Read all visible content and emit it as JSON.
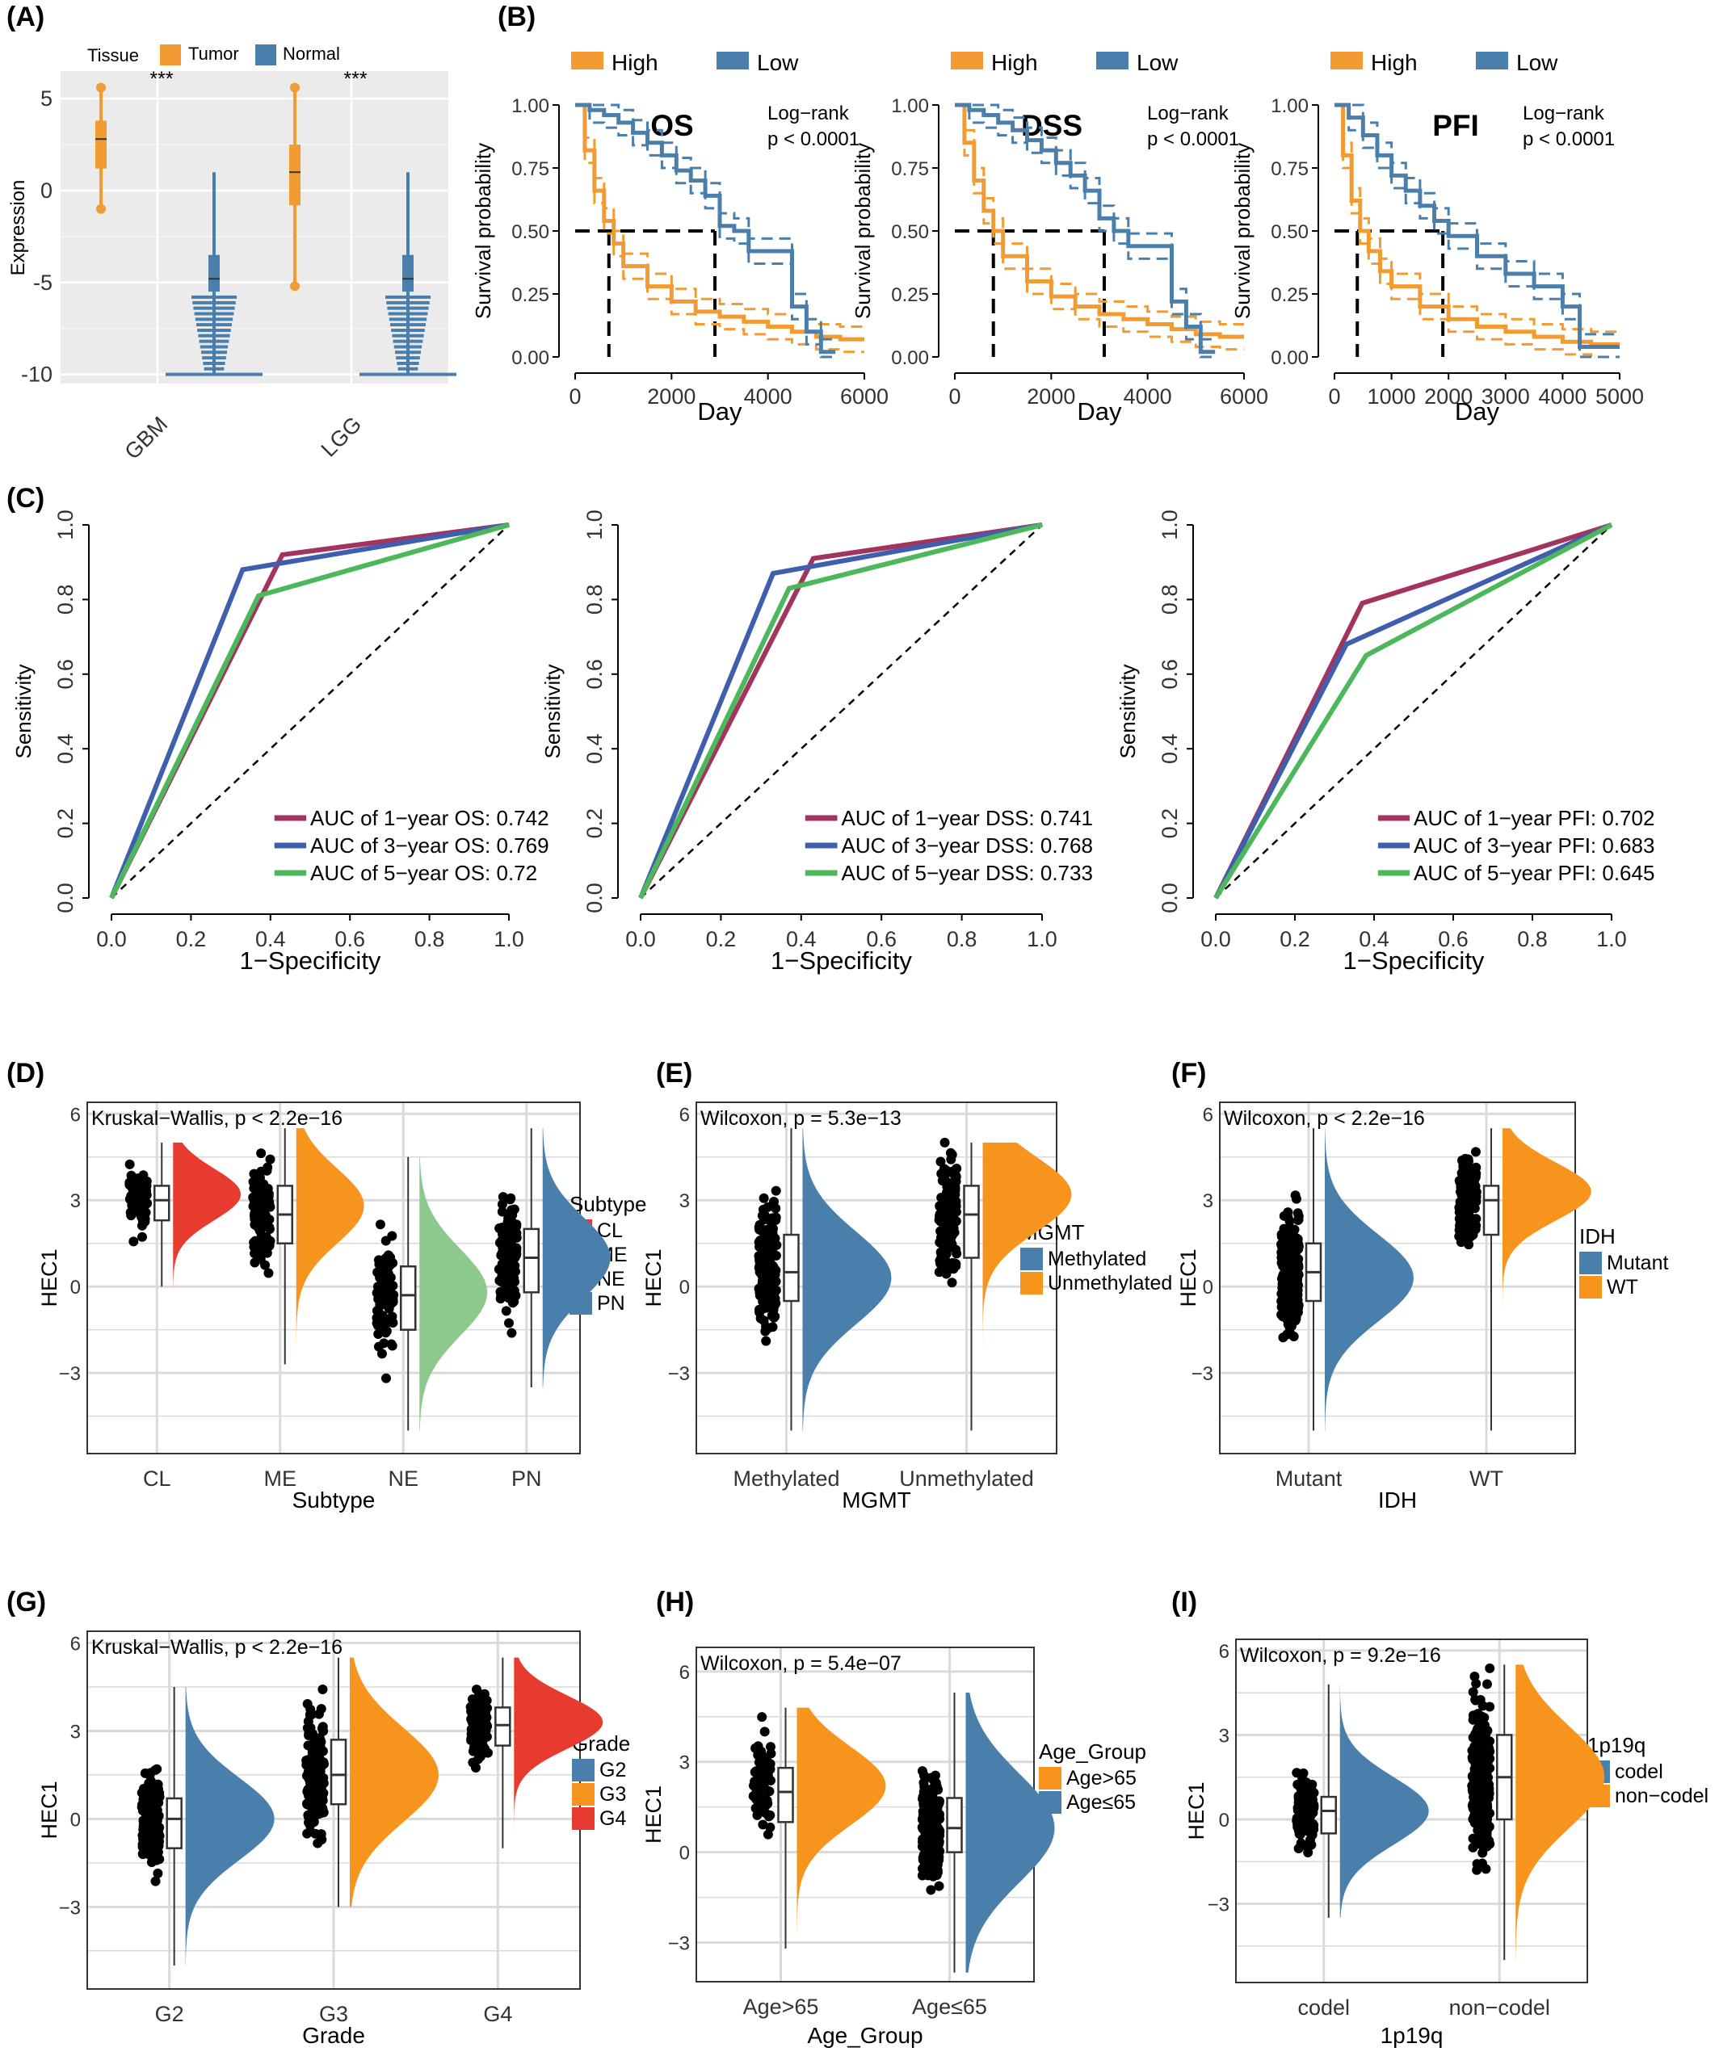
{
  "panel_labels": [
    "(A)",
    "(B)",
    "(C)",
    "(D)",
    "(E)",
    "(F)",
    "(G)",
    "(H)",
    "(I)"
  ],
  "colors": {
    "tumor": "#F29B30",
    "normal": "#4A7EAB",
    "high": "#F29B30",
    "low": "#4A7EAB",
    "roc1": "#A3345E",
    "roc3": "#3F5FAE",
    "roc5": "#4DB85B",
    "CL": "#E63B2E",
    "ME": "#F7941D",
    "NE": "#8DC98C",
    "PN": "#4A7EAB",
    "methylated": "#4A7EAB",
    "unmethylated": "#F7941D",
    "mutant": "#4A7EAB",
    "wt": "#F7941D",
    "G2": "#4A7EAB",
    "G3": "#F7941D",
    "G4": "#E63B2E",
    "age_gt65": "#F7941D",
    "age_le65": "#4A7EAB",
    "codel": "#4A7EAB",
    "noncodel": "#F7941D"
  },
  "chart_data": [
    {
      "id": "A",
      "type": "box",
      "legend_title": "Tissue",
      "legend": [
        "Tumor",
        "Normal"
      ],
      "categories": [
        "GBM",
        "LGG"
      ],
      "ylabel": "Expression",
      "ylim": [
        -10.5,
        6.5
      ],
      "yticks": [
        5,
        0,
        -5,
        -10
      ],
      "significance": [
        "***",
        "***"
      ],
      "series": [
        {
          "name": "Tumor",
          "GBM": {
            "min": -1.0,
            "q1": 1.2,
            "median": 2.8,
            "q3": 3.8,
            "max": 5.6
          },
          "LGG": {
            "min": -5.2,
            "q1": -0.8,
            "median": 1.0,
            "q3": 2.5,
            "max": 5.6
          }
        },
        {
          "name": "Normal",
          "GBM": {
            "min": -10,
            "q1": -5.5,
            "median": -4.8,
            "q3": -3.5,
            "max": 1.0
          },
          "LGG": {
            "min": -10,
            "q1": -5.5,
            "median": -4.8,
            "q3": -3.5,
            "max": 1.0
          }
        }
      ]
    },
    {
      "id": "B",
      "type": "line",
      "subplots": [
        {
          "title": "OS",
          "logrank": "Log−rank",
          "p": "p < 0.0001",
          "xlim": [
            0,
            6000
          ],
          "xticks": [
            0,
            2000,
            4000,
            6000
          ],
          "median_high": 700,
          "median_low": 2900,
          "high": {
            "x": [
              0,
              200,
              400,
              600,
              800,
              1000,
              1500,
              2000,
              2500,
              3000,
              3500,
              4000,
              4500,
              5000,
              5500,
              6000
            ],
            "y": [
              1.0,
              0.82,
              0.66,
              0.54,
              0.45,
              0.36,
              0.28,
              0.22,
              0.18,
              0.16,
              0.14,
              0.12,
              0.1,
              0.08,
              0.07,
              0.07
            ]
          },
          "low": {
            "x": [
              0,
              300,
              600,
              900,
              1200,
              1500,
              1800,
              2100,
              2400,
              2700,
              3000,
              3300,
              3600,
              3900,
              4200,
              4500,
              4800,
              5100,
              5400
            ],
            "y": [
              1.0,
              0.98,
              0.96,
              0.93,
              0.89,
              0.85,
              0.8,
              0.74,
              0.7,
              0.64,
              0.52,
              0.5,
              0.42,
              0.42,
              0.42,
              0.2,
              0.1,
              0.02,
              0.02
            ]
          }
        },
        {
          "title": "DSS",
          "logrank": "Log−rank",
          "p": "p < 0.0001",
          "xlim": [
            0,
            6000
          ],
          "xticks": [
            0,
            2000,
            4000,
            6000
          ],
          "median_high": 800,
          "median_low": 3100,
          "high": {
            "x": [
              0,
              200,
              400,
              600,
              800,
              1000,
              1500,
              2000,
              2500,
              3000,
              3500,
              4000,
              4500,
              5000,
              5500,
              6000
            ],
            "y": [
              1.0,
              0.85,
              0.7,
              0.58,
              0.5,
              0.4,
              0.3,
              0.24,
              0.2,
              0.17,
              0.15,
              0.13,
              0.11,
              0.09,
              0.08,
              0.08
            ]
          },
          "low": {
            "x": [
              0,
              300,
              600,
              900,
              1200,
              1500,
              1800,
              2100,
              2400,
              2700,
              3000,
              3300,
              3600,
              3900,
              4200,
              4500,
              4800,
              5100,
              5400
            ],
            "y": [
              1.0,
              0.98,
              0.96,
              0.93,
              0.9,
              0.86,
              0.82,
              0.77,
              0.72,
              0.66,
              0.55,
              0.5,
              0.44,
              0.44,
              0.44,
              0.22,
              0.12,
              0.02,
              0.02
            ]
          }
        },
        {
          "title": "PFI",
          "logrank": "Log−rank",
          "p": "p < 0.0001",
          "xlim": [
            0,
            5000
          ],
          "xticks": [
            0,
            1000,
            2000,
            3000,
            4000,
            5000
          ],
          "median_high": 400,
          "median_low": 1900,
          "high": {
            "x": [
              0,
              150,
              300,
              450,
              600,
              800,
              1000,
              1500,
              2000,
              2500,
              3000,
              3500,
              4000,
              4500,
              5000
            ],
            "y": [
              1.0,
              0.8,
              0.62,
              0.5,
              0.42,
              0.34,
              0.28,
              0.2,
              0.15,
              0.12,
              0.1,
              0.08,
              0.06,
              0.05,
              0.05
            ]
          },
          "low": {
            "x": [
              0,
              250,
              500,
              750,
              1000,
              1250,
              1500,
              1750,
              2000,
              2500,
              3000,
              3500,
              4000,
              4300,
              4300,
              5000
            ],
            "y": [
              1.0,
              0.95,
              0.88,
              0.8,
              0.72,
              0.66,
              0.6,
              0.54,
              0.48,
              0.4,
              0.33,
              0.28,
              0.2,
              0.2,
              0.04,
              0.04
            ]
          }
        }
      ],
      "legend": [
        "High",
        "Low"
      ],
      "xlabel": "Day",
      "ylabel": "Survival probability",
      "yticks": [
        0.0,
        0.25,
        0.5,
        0.75,
        1.0
      ]
    },
    {
      "id": "C",
      "type": "line",
      "xlabel": "1−Specificity",
      "ylabel": "Sensitivity",
      "xticks": [
        0.0,
        0.2,
        0.4,
        0.6,
        0.8,
        1.0
      ],
      "yticks": [
        0.0,
        0.2,
        0.4,
        0.6,
        0.8,
        1.0
      ],
      "subplots": [
        {
          "curves": [
            {
              "label": "AUC of 1−year OS: 0.742",
              "x": [
                0,
                0.43,
                1
              ],
              "y": [
                0,
                0.92,
                1
              ]
            },
            {
              "label": "AUC of 3−year OS: 0.769",
              "x": [
                0,
                0.33,
                1
              ],
              "y": [
                0,
                0.88,
                1
              ]
            },
            {
              "label": "AUC of 5−year OS: 0.72",
              "x": [
                0,
                0.37,
                1
              ],
              "y": [
                0,
                0.81,
                1
              ]
            }
          ]
        },
        {
          "curves": [
            {
              "label": "AUC of 1−year DSS: 0.741",
              "x": [
                0,
                0.43,
                1
              ],
              "y": [
                0,
                0.91,
                1
              ]
            },
            {
              "label": "AUC of 3−year DSS: 0.768",
              "x": [
                0,
                0.33,
                1
              ],
              "y": [
                0,
                0.87,
                1
              ]
            },
            {
              "label": "AUC of 5−year DSS: 0.733",
              "x": [
                0,
                0.37,
                1
              ],
              "y": [
                0,
                0.83,
                1
              ]
            }
          ]
        },
        {
          "curves": [
            {
              "label": "AUC of 1−year PFI: 0.702",
              "x": [
                0,
                0.37,
                1
              ],
              "y": [
                0,
                0.79,
                1
              ]
            },
            {
              "label": "AUC of 3−year PFI: 0.683",
              "x": [
                0,
                0.33,
                1
              ],
              "y": [
                0,
                0.68,
                1
              ]
            },
            {
              "label": "AUC of 5−year PFI: 0.645",
              "x": [
                0,
                0.38,
                1
              ],
              "y": [
                0,
                0.65,
                1
              ]
            }
          ]
        }
      ]
    },
    {
      "id": "D",
      "type": "violin",
      "stat": "Kruskal−Wallis, p < 2.2e−16",
      "xlabel": "Subtype",
      "ylabel": "HEC1",
      "legend_title": "Subtype",
      "ylim": [
        -5.8,
        6.4
      ],
      "yticks": [
        6,
        3,
        0,
        -3
      ],
      "groups": [
        {
          "name": "CL",
          "min": 0,
          "q1": 2.3,
          "median": 3.0,
          "q3": 3.5,
          "max": 5.0,
          "mode": 3.2,
          "spread": 0.9,
          "n": 80
        },
        {
          "name": "ME",
          "min": -2.7,
          "q1": 1.5,
          "median": 2.5,
          "q3": 3.5,
          "max": 5.5,
          "mode": 2.8,
          "spread": 1.3,
          "n": 100
        },
        {
          "name": "NE",
          "min": -5.0,
          "q1": -1.5,
          "median": -0.3,
          "q3": 0.7,
          "max": 4.5,
          "mode": -0.2,
          "spread": 1.5,
          "n": 80
        },
        {
          "name": "PN",
          "min": -3.5,
          "q1": -0.2,
          "median": 1.0,
          "q3": 2.0,
          "max": 5.5,
          "mode": 1.0,
          "spread": 1.4,
          "n": 120
        }
      ]
    },
    {
      "id": "E",
      "type": "violin",
      "stat": "Wilcoxon, p = 5.3e−13",
      "xlabel": "MGMT",
      "ylabel": "HEC1",
      "legend_title": "MGMT",
      "ylim": [
        -5.8,
        6.4
      ],
      "yticks": [
        6,
        3,
        0,
        -3
      ],
      "groups": [
        {
          "name": "Methylated",
          "min": -5.0,
          "q1": -0.5,
          "median": 0.5,
          "q3": 1.8,
          "max": 5.5,
          "mode": 0.3,
          "spread": 1.6,
          "n": 180
        },
        {
          "name": "Unmethylated",
          "min": -5.0,
          "q1": 1.0,
          "median": 2.5,
          "q3": 3.5,
          "max": 5.0,
          "mode": 3.2,
          "spread": 1.3,
          "n": 130
        }
      ]
    },
    {
      "id": "F",
      "type": "violin",
      "stat": "Wilcoxon, p < 2.2e−16",
      "xlabel": "IDH",
      "ylabel": "HEC1",
      "legend_title": "IDH",
      "ylim": [
        -5.8,
        6.4
      ],
      "yticks": [
        6,
        3,
        0,
        -3
      ],
      "groups": [
        {
          "name": "Mutant",
          "min": -5.0,
          "q1": -0.5,
          "median": 0.5,
          "q3": 1.5,
          "max": 5.5,
          "mode": 0.3,
          "spread": 1.5,
          "n": 220
        },
        {
          "name": "WT",
          "min": -5.0,
          "q1": 1.8,
          "median": 3.0,
          "q3": 3.5,
          "max": 5.5,
          "mode": 3.3,
          "spread": 1.0,
          "n": 140
        }
      ]
    },
    {
      "id": "G",
      "type": "violin",
      "stat": "Kruskal−Wallis, p < 2.2e−16",
      "xlabel": "Grade",
      "ylabel": "HEC1",
      "legend_title": "Grade",
      "ylim": [
        -5.8,
        6.4
      ],
      "yticks": [
        6,
        3,
        0,
        -3
      ],
      "groups": [
        {
          "name": "G2",
          "min": -5.0,
          "q1": -1.0,
          "median": 0.0,
          "q3": 0.7,
          "max": 4.5,
          "mode": 0.0,
          "spread": 1.4,
          "n": 150
        },
        {
          "name": "G3",
          "min": -3.0,
          "q1": 0.5,
          "median": 1.5,
          "q3": 2.7,
          "max": 5.5,
          "mode": 1.5,
          "spread": 1.6,
          "n": 160
        },
        {
          "name": "G4",
          "min": -1.0,
          "q1": 2.5,
          "median": 3.2,
          "q3": 3.8,
          "max": 5.5,
          "mode": 3.3,
          "spread": 0.9,
          "n": 120
        }
      ]
    },
    {
      "id": "H",
      "type": "violin",
      "stat": "Wilcoxon, p = 5.4e−07",
      "xlabel": "Age_Group",
      "ylabel": "HEC1",
      "legend_title": "Age_Group",
      "ylim": [
        -4.3,
        6.8
      ],
      "yticks": [
        6,
        3,
        0,
        -3
      ],
      "groups": [
        {
          "name": "Age>65",
          "min": -3.2,
          "q1": 1.0,
          "median": 2.0,
          "q3": 2.8,
          "max": 4.8,
          "mode": 2.2,
          "spread": 1.3,
          "n": 70
        },
        {
          "name": "Age≤65",
          "min": -4.0,
          "q1": 0.0,
          "median": 0.8,
          "q3": 1.8,
          "max": 5.3,
          "mode": 0.8,
          "spread": 1.8,
          "n": 260
        }
      ]
    },
    {
      "id": "I",
      "type": "violin",
      "stat": "Wilcoxon, p = 9.2e−16",
      "xlabel": "1p19q",
      "ylabel": "HEC1",
      "legend_title": "1p19q",
      "ylim": [
        -5.8,
        6.4
      ],
      "yticks": [
        6,
        3,
        0,
        -3
      ],
      "groups": [
        {
          "name": "codel",
          "min": -3.5,
          "q1": -0.5,
          "median": 0.3,
          "q3": 0.8,
          "max": 4.8,
          "mode": 0.3,
          "spread": 1.2,
          "n": 130
        },
        {
          "name": "non−codel",
          "min": -5.0,
          "q1": 0.0,
          "median": 1.5,
          "q3": 3.0,
          "max": 5.5,
          "mode": 1.5,
          "spread": 1.8,
          "n": 260
        }
      ]
    }
  ]
}
